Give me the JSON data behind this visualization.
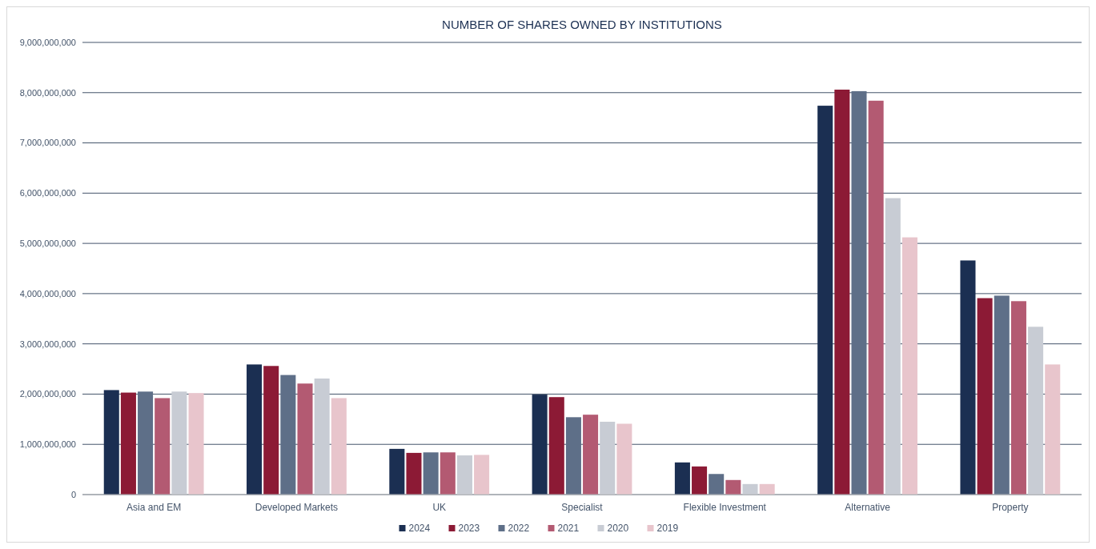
{
  "chart_data": {
    "type": "bar",
    "title": "NUMBER OF SHARES OWNED BY INSTITUTIONS",
    "categories": [
      "Asia and EM",
      "Developed Markets",
      "UK",
      "Specialist",
      "Flexible Investment",
      "Alternative",
      "Property"
    ],
    "series": [
      {
        "name": "2024",
        "color": "#1b2f52",
        "values": [
          2080000000,
          2590000000,
          910000000,
          1990000000,
          640000000,
          7740000000,
          4660000000
        ]
      },
      {
        "name": "2023",
        "color": "#8c1a35",
        "values": [
          2030000000,
          2560000000,
          830000000,
          1940000000,
          560000000,
          8060000000,
          3910000000
        ]
      },
      {
        "name": "2022",
        "color": "#5e6f88",
        "values": [
          2050000000,
          2380000000,
          840000000,
          1540000000,
          410000000,
          8030000000,
          3960000000
        ]
      },
      {
        "name": "2021",
        "color": "#b35a72",
        "values": [
          1920000000,
          2210000000,
          840000000,
          1590000000,
          290000000,
          7840000000,
          3850000000
        ]
      },
      {
        "name": "2020",
        "color": "#c8ccd4",
        "values": [
          2050000000,
          2310000000,
          780000000,
          1450000000,
          210000000,
          5900000000,
          3340000000
        ]
      },
      {
        "name": "2019",
        "color": "#e8c5cc",
        "values": [
          2020000000,
          1920000000,
          790000000,
          1410000000,
          210000000,
          5120000000,
          2590000000
        ]
      }
    ],
    "ylim": [
      0,
      9000000000
    ],
    "yticks": [
      {
        "value": 0,
        "label": "0"
      },
      {
        "value": 1000000000,
        "label": "1,000,000,000"
      },
      {
        "value": 2000000000,
        "label": "2,000,000,000"
      },
      {
        "value": 3000000000,
        "label": "3,000,000,000"
      },
      {
        "value": 4000000000,
        "label": "4,000,000,000"
      },
      {
        "value": 5000000000,
        "label": "5,000,000,000"
      },
      {
        "value": 6000000000,
        "label": "6,000,000,000"
      },
      {
        "value": 7000000000,
        "label": "7,000,000,000"
      },
      {
        "value": 8000000000,
        "label": "8,000,000,000"
      },
      {
        "value": 9000000000,
        "label": "9,000,000,000"
      }
    ],
    "grid": "y",
    "legend": "bottom"
  }
}
